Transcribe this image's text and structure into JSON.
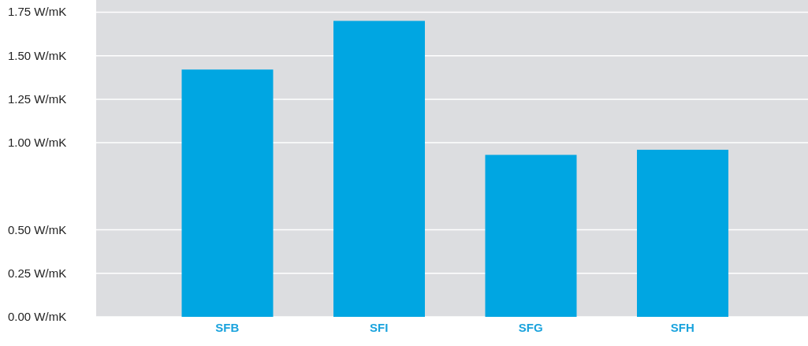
{
  "chart_data": {
    "type": "bar",
    "categories": [
      "SFB",
      "SFI",
      "SFG",
      "SFH"
    ],
    "values": [
      1.42,
      1.7,
      0.93,
      0.96
    ],
    "color": "#00a6e2",
    "ylim": [
      0,
      1.82
    ],
    "yticks": [
      {
        "value": 0,
        "label": "0.00 W/mK"
      },
      {
        "value": 0.25,
        "label": "0.25 W/mK"
      },
      {
        "value": 0.5,
        "label": "0.50 W/mK"
      },
      {
        "value": 1.0,
        "label": "1.00 W/mK"
      },
      {
        "value": 1.25,
        "label": "1.25 W/mK"
      },
      {
        "value": 1.5,
        "label": "1.50 W/mK"
      },
      {
        "value": 1.75,
        "label": "1.75 W/mK"
      }
    ],
    "grid": "y"
  }
}
